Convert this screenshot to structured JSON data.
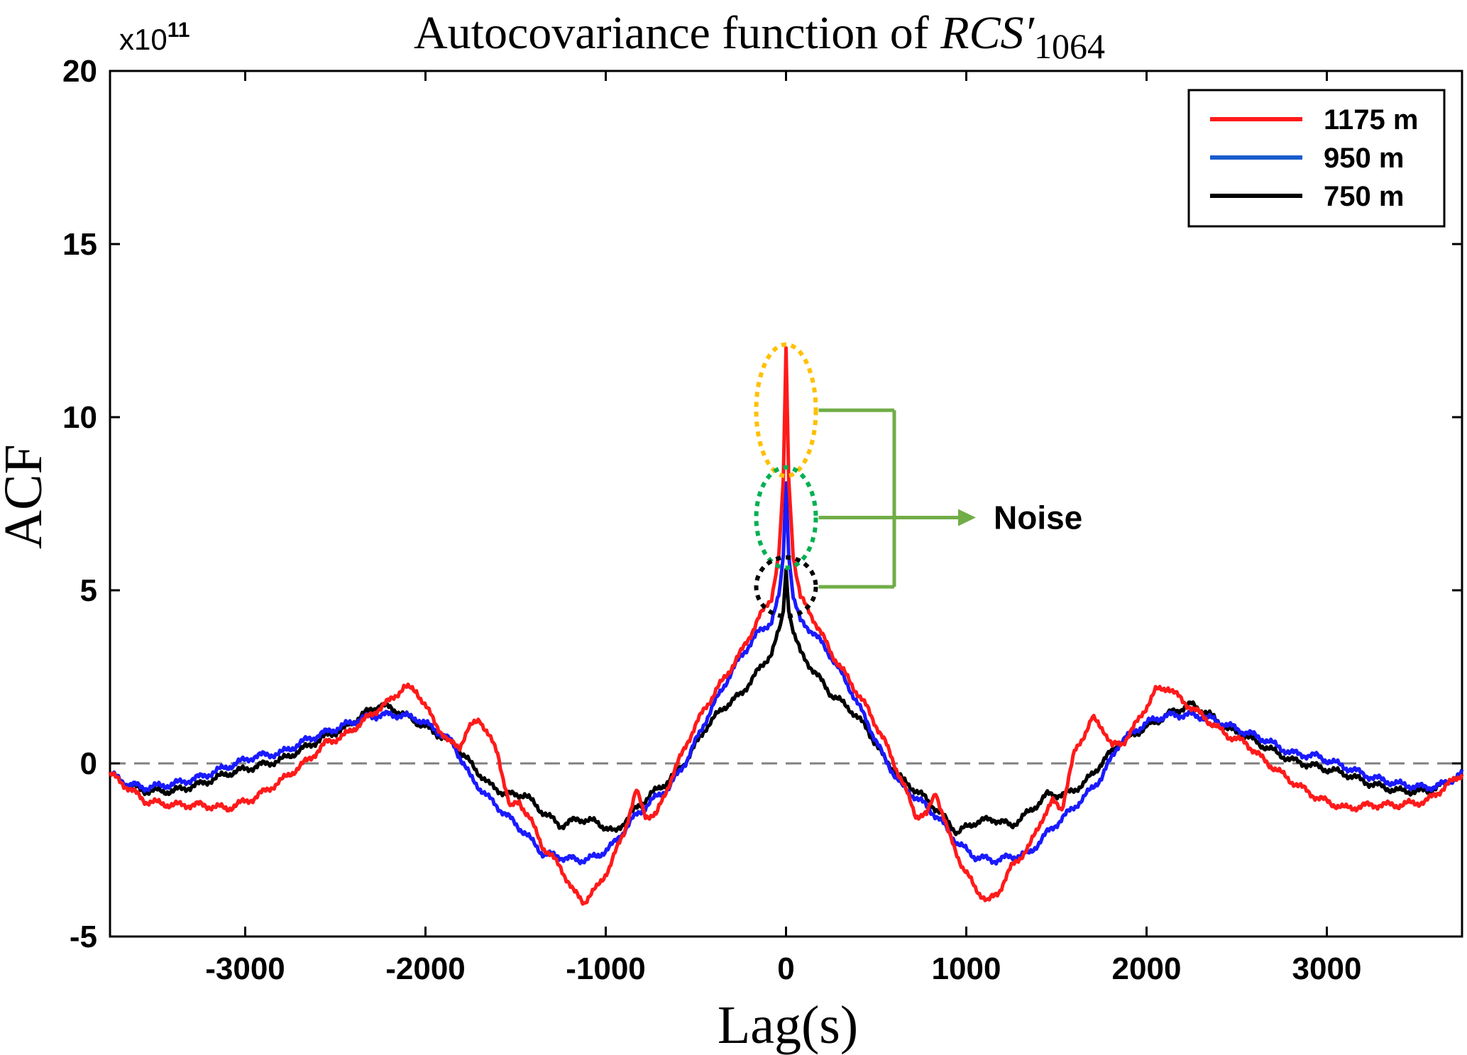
{
  "chart_data": {
    "type": "line",
    "title": "Autocovariance function of ",
    "title_math": "RCS′",
    "title_subscript": "1064",
    "xlabel": "Lag(s)",
    "ylabel": "ACF",
    "y_multiplier": {
      "base": "x10",
      "exponent": "11"
    },
    "xlim": [
      -3750,
      3750
    ],
    "ylim": [
      -5,
      20
    ],
    "xticks": [
      -3000,
      -2000,
      -1000,
      0,
      1000,
      2000,
      3000
    ],
    "xtick_labels": [
      "-3000",
      "-2000",
      "-1000",
      "0",
      "1000",
      "2000",
      "3000"
    ],
    "yticks": [
      -5,
      0,
      5,
      10,
      15,
      20
    ],
    "ytick_labels": [
      "-5",
      "0",
      "5",
      "10",
      "15",
      "20"
    ],
    "zero_line": {
      "style": "dashed",
      "color": "#808080"
    },
    "legend_position": "top-right",
    "symmetric_about_zero": true,
    "series": [
      {
        "name": "1175 m",
        "color": "#ff1a1a",
        "x": [
          0,
          15,
          40,
          80,
          150,
          250,
          350,
          450,
          550,
          650,
          720,
          780,
          830,
          900,
          980,
          1050,
          1120,
          1180,
          1250,
          1350,
          1420,
          1480,
          1530,
          1600,
          1700,
          1760,
          1810,
          1870,
          1950,
          2050,
          2120,
          2200,
          2280,
          2350,
          2450,
          2550,
          2650,
          2800,
          2950,
          3100,
          3250,
          3400,
          3550,
          3650,
          3750
        ],
        "y": [
          12.0,
          8.2,
          6.0,
          4.8,
          4.2,
          3.2,
          2.4,
          1.6,
          0.6,
          -0.6,
          -1.5,
          -1.5,
          -0.8,
          -2.0,
          -3.0,
          -3.6,
          -4.0,
          -3.7,
          -3.0,
          -2.4,
          -1.6,
          -1.1,
          -1.3,
          0.3,
          1.3,
          1.0,
          0.5,
          0.6,
          1.2,
          2.1,
          2.2,
          1.8,
          1.5,
          1.2,
          0.8,
          0.6,
          0.1,
          -0.5,
          -1.0,
          -1.3,
          -1.2,
          -1.2,
          -1.1,
          -0.7,
          -0.3
        ]
      },
      {
        "name": "950 m",
        "color": "#1a1aff",
        "x": [
          0,
          15,
          40,
          80,
          150,
          250,
          350,
          450,
          550,
          650,
          750,
          850,
          950,
          1050,
          1150,
          1250,
          1350,
          1450,
          1550,
          1650,
          1750,
          1850,
          1950,
          2050,
          2150,
          2250,
          2350,
          2450,
          2550,
          2650,
          2800,
          2950,
          3100,
          3250,
          3400,
          3550,
          3650,
          3750
        ],
        "y": [
          8.1,
          6.0,
          4.8,
          4.1,
          3.8,
          3.1,
          2.2,
          1.2,
          0.1,
          -0.7,
          -1.1,
          -1.6,
          -2.3,
          -2.7,
          -2.8,
          -2.7,
          -2.6,
          -2.0,
          -1.5,
          -1.0,
          -0.4,
          0.6,
          1.0,
          1.3,
          1.4,
          1.4,
          1.3,
          1.1,
          0.9,
          0.7,
          0.3,
          0.2,
          -0.1,
          -0.4,
          -0.6,
          -0.7,
          -0.6,
          -0.3
        ]
      },
      {
        "name": "750 m",
        "color": "#000000",
        "x": [
          0,
          15,
          40,
          80,
          150,
          250,
          350,
          450,
          550,
          650,
          750,
          850,
          950,
          1050,
          1150,
          1250,
          1350,
          1450,
          1550,
          1650,
          1750,
          1850,
          1950,
          2050,
          2150,
          2250,
          2350,
          2450,
          2550,
          2650,
          2800,
          2950,
          3100,
          3250,
          3400,
          3550,
          3650,
          3750
        ],
        "y": [
          5.6,
          4.4,
          3.8,
          3.2,
          2.7,
          2.0,
          1.6,
          1.0,
          0.1,
          -0.5,
          -0.9,
          -1.4,
          -2.0,
          -1.7,
          -1.6,
          -1.8,
          -1.4,
          -0.9,
          -0.9,
          -0.6,
          0.0,
          0.6,
          0.9,
          1.2,
          1.5,
          1.7,
          1.4,
          1.0,
          0.8,
          0.5,
          0.1,
          -0.1,
          -0.3,
          -0.6,
          -0.8,
          -0.8,
          -0.6,
          -0.3
        ]
      }
    ],
    "annotations": [
      {
        "label": "Noise",
        "arrow_color": "#70ad47",
        "circled_series": [
          "1175 m",
          "950 m",
          "750 m"
        ],
        "circle_colors": [
          "#ffc000",
          "#00b050",
          "#000000"
        ]
      }
    ]
  }
}
